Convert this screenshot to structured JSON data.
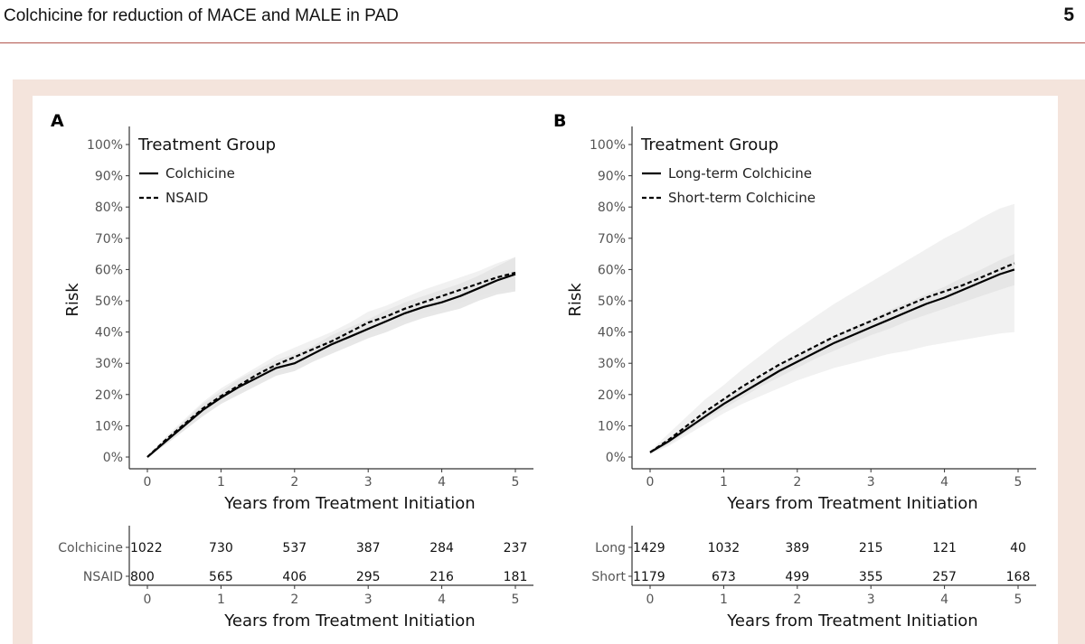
{
  "header": {
    "running_title": "Colchicine for reduction of MACE and MALE in PAD",
    "page_number": "5"
  },
  "colors": {
    "accent_rule": "#b2554d",
    "frame": "#f4e4dc",
    "ci_band": "#d9d9d9",
    "line": "#000000"
  },
  "chart_data": [
    {
      "panel": "A",
      "type": "line",
      "title": "",
      "xlabel": "Years from Treatment Initiation",
      "ylabel": "Risk",
      "xlim": [
        0,
        5
      ],
      "ylim": [
        0,
        100
      ],
      "xticks": [
        "0",
        "1",
        "2",
        "3",
        "4",
        "5"
      ],
      "yticks": [
        "0%",
        "10%",
        "20%",
        "30%",
        "40%",
        "50%",
        "60%",
        "70%",
        "80%",
        "90%",
        "100%"
      ],
      "legend_title": "Treatment Group",
      "legend_position": "top-left",
      "series": [
        {
          "name": "Colchicine",
          "style": "solid",
          "x": [
            0,
            0.25,
            0.5,
            0.75,
            1,
            1.25,
            1.5,
            1.75,
            2,
            2.25,
            2.5,
            2.75,
            3,
            3.25,
            3.5,
            3.75,
            4,
            4.25,
            4.5,
            4.75,
            5
          ],
          "y": [
            0,
            5,
            10,
            15,
            19,
            22.5,
            25.5,
            28.5,
            30,
            33,
            36,
            38.5,
            41,
            43.5,
            46,
            48,
            49.5,
            51.5,
            54,
            56.5,
            58.5
          ],
          "ci_lower": [
            0,
            4,
            8.5,
            13,
            17,
            20,
            23,
            26,
            27.5,
            30.5,
            33,
            35.5,
            38,
            40,
            42.5,
            44.5,
            46,
            47.5,
            50,
            52,
            53
          ],
          "ci_upper": [
            0,
            6,
            11.5,
            17,
            21,
            25,
            28,
            31,
            33,
            35.5,
            39,
            41.5,
            44,
            47,
            49.5,
            51.5,
            53.5,
            55.5,
            58,
            61,
            64
          ]
        },
        {
          "name": "NSAID",
          "style": "dashed",
          "x": [
            0,
            0.25,
            0.5,
            0.75,
            1,
            1.25,
            1.5,
            1.75,
            2,
            2.25,
            2.5,
            2.75,
            3,
            3.25,
            3.5,
            3.75,
            4,
            4.25,
            4.5,
            4.75,
            5
          ],
          "y": [
            0,
            5.5,
            10.5,
            15.5,
            19.5,
            23,
            26.5,
            29.5,
            32,
            34.5,
            37,
            40,
            43,
            45,
            47.5,
            49.5,
            51.5,
            53.5,
            55.5,
            57.5,
            59
          ],
          "ci_lower": [
            0,
            4.5,
            9,
            13.5,
            17.5,
            20.5,
            24,
            27,
            29,
            31.5,
            34,
            37,
            39.5,
            41.5,
            44,
            46,
            47.5,
            49.5,
            51.5,
            53,
            54
          ],
          "ci_upper": [
            0,
            6.5,
            12,
            17.5,
            22,
            25.5,
            29,
            32.5,
            35,
            37.5,
            40,
            43,
            46.5,
            48.5,
            51,
            53.5,
            55.5,
            57.5,
            59.5,
            62,
            64
          ]
        }
      ],
      "risk_table": {
        "xlabel": "Years from Treatment Initiation",
        "rows": [
          {
            "label": "Colchicine",
            "counts": [
              "1022",
              "730",
              "537",
              "387",
              "284",
              "237"
            ]
          },
          {
            "label": "NSAID",
            "counts": [
              "800",
              "565",
              "406",
              "295",
              "216",
              "181"
            ]
          }
        ]
      }
    },
    {
      "panel": "B",
      "type": "line",
      "title": "",
      "xlabel": "Years from Treatment Initiation",
      "ylabel": "Risk",
      "xlim": [
        0,
        5
      ],
      "ylim": [
        0,
        100
      ],
      "xticks": [
        "0",
        "1",
        "2",
        "3",
        "4",
        "5"
      ],
      "yticks": [
        "0%",
        "10%",
        "20%",
        "30%",
        "40%",
        "50%",
        "60%",
        "70%",
        "80%",
        "90%",
        "100%"
      ],
      "legend_title": "Treatment Group",
      "legend_position": "top-left",
      "series": [
        {
          "name": "Long-term Colchicine",
          "style": "solid",
          "x": [
            0,
            0.25,
            0.5,
            0.75,
            1,
            1.25,
            1.5,
            1.75,
            2,
            2.25,
            2.5,
            2.75,
            3,
            3.25,
            3.5,
            3.75,
            4,
            4.25,
            4.5,
            4.75,
            4.95
          ],
          "y": [
            1.5,
            5,
            9,
            13,
            17,
            20.5,
            24,
            27.5,
            30.5,
            33.5,
            36.5,
            39,
            41.5,
            44,
            46.5,
            49,
            51,
            53.5,
            56,
            58.5,
            60
          ],
          "ci_lower": [
            1,
            4,
            8,
            12,
            15.5,
            19,
            22.5,
            25.5,
            28.5,
            31.5,
            34,
            36.5,
            39,
            41,
            43.5,
            45.5,
            47.5,
            49.5,
            51.5,
            53.5,
            55
          ],
          "ci_upper": [
            2,
            6,
            10,
            14,
            18.5,
            22,
            25.5,
            29.5,
            32.5,
            35.5,
            38.5,
            41.5,
            44,
            47,
            49.5,
            52,
            54.5,
            57.5,
            60,
            63,
            65
          ]
        },
        {
          "name": "Short-term Colchicine",
          "style": "dashed",
          "x": [
            0,
            0.25,
            0.5,
            0.75,
            1,
            1.25,
            1.5,
            1.75,
            2,
            2.25,
            2.5,
            2.75,
            3,
            3.25,
            3.5,
            3.75,
            4,
            4.25,
            4.5,
            4.75,
            4.95
          ],
          "y": [
            1.5,
            5.5,
            10,
            14.5,
            18.5,
            22.5,
            26,
            29.5,
            32.5,
            35.5,
            38.5,
            41,
            43.5,
            46,
            48.5,
            51,
            53,
            55,
            57.5,
            60,
            62
          ],
          "ci_lower": [
            1,
            3.5,
            7,
            10.5,
            14,
            17,
            19.5,
            22,
            24.5,
            26.5,
            28.5,
            30,
            31.5,
            33,
            34,
            35.5,
            36.5,
            37.5,
            38.5,
            39.5,
            40
          ],
          "ci_upper": [
            2,
            7.5,
            13,
            18.5,
            23,
            28,
            32.5,
            37,
            41,
            45,
            49,
            52.5,
            56,
            59.5,
            63,
            66.5,
            70,
            73,
            76.5,
            79.5,
            81
          ]
        }
      ],
      "risk_table": {
        "xlabel": "Years from Treatment Initiation",
        "rows": [
          {
            "label": "Long",
            "counts": [
              "1429",
              "1032",
              "389",
              "215",
              "121",
              "40"
            ]
          },
          {
            "label": "Short",
            "counts": [
              "1179",
              "673",
              "499",
              "355",
              "257",
              "168"
            ]
          }
        ]
      }
    }
  ]
}
